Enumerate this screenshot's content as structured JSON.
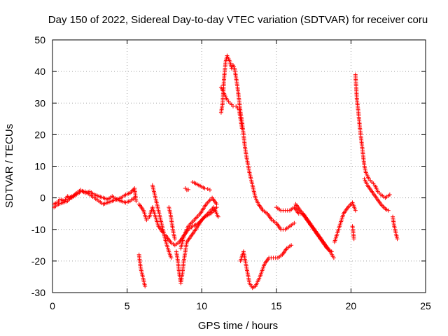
{
  "chart_data": {
    "type": "scatter",
    "title": "Day 150 of 2022, Sidereal Day-to-day VTEC variation (SDTVAR) for receiver coru",
    "xlabel": "GPS time / hours",
    "ylabel": "SDTVAR / TECUs",
    "xlim": [
      0,
      25
    ],
    "ylim": [
      -30,
      50
    ],
    "xticks": [
      "0",
      "5",
      "10",
      "15",
      "20",
      "25"
    ],
    "yticks": [
      "-30",
      "-20",
      "-10",
      "0",
      "10",
      "20",
      "30",
      "40",
      "50"
    ],
    "grid": true,
    "marker": "+",
    "color": "#ff0000",
    "series": [
      {
        "name": "SDTVAR",
        "segments": [
          [
            [
              0.1,
              -2
            ],
            [
              0.3,
              -1.5
            ],
            [
              0.5,
              -0.5
            ],
            [
              0.8,
              -1
            ],
            [
              1.0,
              0.5
            ],
            [
              1.3,
              0
            ],
            [
              1.6,
              1.5
            ],
            [
              1.9,
              2.5
            ],
            [
              2.2,
              1.5
            ],
            [
              2.5,
              2
            ],
            [
              2.8,
              1
            ],
            [
              3.1,
              0.5
            ],
            [
              3.4,
              0
            ],
            [
              3.7,
              -0.5
            ],
            [
              4.0,
              0.5
            ],
            [
              4.3,
              -0.5
            ],
            [
              4.6,
              0
            ],
            [
              4.9,
              1
            ],
            [
              5.2,
              1.5
            ],
            [
              5.5,
              3
            ],
            [
              5.6,
              -1
            ]
          ],
          [
            [
              0.1,
              -3
            ],
            [
              0.4,
              -2
            ],
            [
              0.7,
              -1.5
            ],
            [
              1.0,
              -1
            ],
            [
              1.3,
              0.5
            ],
            [
              1.6,
              1
            ],
            [
              1.9,
              2
            ],
            [
              2.2,
              2
            ],
            [
              2.5,
              1
            ],
            [
              2.8,
              0
            ],
            [
              3.1,
              -1
            ],
            [
              3.4,
              -2
            ],
            [
              3.7,
              -1.5
            ],
            [
              4.0,
              -1
            ],
            [
              4.3,
              -0.5
            ],
            [
              4.6,
              -1
            ],
            [
              4.9,
              -1.5
            ],
            [
              5.2,
              -1
            ],
            [
              5.5,
              0
            ]
          ],
          [
            [
              5.8,
              -18
            ],
            [
              5.9,
              -22
            ],
            [
              6.0,
              -24
            ],
            [
              6.1,
              -26
            ],
            [
              6.2,
              -28
            ]
          ],
          [
            [
              5.8,
              -2
            ],
            [
              6.1,
              -4
            ],
            [
              6.3,
              -7
            ],
            [
              6.5,
              -6
            ],
            [
              6.7,
              -3
            ],
            [
              6.9,
              -6
            ],
            [
              7.1,
              -9
            ],
            [
              7.4,
              -11
            ],
            [
              7.6,
              -12
            ],
            [
              7.9,
              -14
            ],
            [
              8.2,
              -15
            ],
            [
              8.5,
              -14
            ],
            [
              8.8,
              -12
            ],
            [
              9.1,
              -10
            ],
            [
              9.4,
              -9
            ],
            [
              9.8,
              -8
            ],
            [
              10.2,
              -6
            ],
            [
              10.6,
              -5
            ],
            [
              11.0,
              -3
            ]
          ],
          [
            [
              6.7,
              4
            ],
            [
              6.8,
              2
            ],
            [
              7.0,
              -2
            ],
            [
              7.2,
              -6
            ],
            [
              7.4,
              -10
            ],
            [
              7.6,
              -14
            ],
            [
              7.8,
              -17
            ],
            [
              7.95,
              -19
            ]
          ],
          [
            [
              7.8,
              -3
            ],
            [
              7.9,
              -5
            ],
            [
              8.0,
              -8
            ],
            [
              8.1,
              -11
            ],
            [
              8.2,
              -13
            ]
          ],
          [
            [
              8.3,
              -17
            ],
            [
              8.4,
              -20
            ],
            [
              8.5,
              -24
            ],
            [
              8.6,
              -27
            ],
            [
              8.7,
              -24
            ],
            [
              8.8,
              -20
            ],
            [
              9.0,
              -14
            ],
            [
              9.3,
              -12
            ],
            [
              9.6,
              -10
            ],
            [
              10.0,
              -7
            ],
            [
              10.4,
              -5
            ],
            [
              10.8,
              -3
            ],
            [
              11.1,
              -6
            ]
          ],
          [
            [
              8.6,
              -16
            ],
            [
              8.8,
              -12
            ],
            [
              9.1,
              -9
            ],
            [
              9.5,
              -7
            ],
            [
              9.9,
              -5
            ],
            [
              10.3,
              -2
            ],
            [
              10.7,
              0
            ],
            [
              11.0,
              -2
            ]
          ],
          [
            [
              8.9,
              3
            ],
            [
              9.0,
              2.5
            ],
            [
              9.1,
              2.6
            ]
          ],
          [
            [
              9.4,
              5
            ],
            [
              9.6,
              4.5
            ],
            [
              9.8,
              4
            ],
            [
              10.0,
              3.5
            ],
            [
              10.2,
              3
            ],
            [
              10.4,
              2.8
            ],
            [
              10.55,
              2.5
            ]
          ],
          [
            [
              11.3,
              27
            ],
            [
              11.4,
              30
            ],
            [
              11.5,
              38
            ],
            [
              11.6,
              43
            ],
            [
              11.7,
              45
            ],
            [
              11.8,
              44
            ],
            [
              11.9,
              43
            ],
            [
              12.0,
              41
            ],
            [
              12.1,
              42
            ],
            [
              12.2,
              41
            ],
            [
              12.3,
              38
            ],
            [
              12.4,
              35
            ],
            [
              12.5,
              31
            ],
            [
              12.6,
              27
            ],
            [
              12.7,
              24
            ],
            [
              12.8,
              20
            ],
            [
              12.9,
              16
            ],
            [
              13.0,
              13
            ],
            [
              13.2,
              8
            ],
            [
              13.4,
              4
            ],
            [
              13.6,
              0
            ],
            [
              13.8,
              -2
            ],
            [
              14.1,
              -4
            ],
            [
              14.4,
              -5
            ],
            [
              14.7,
              -7
            ],
            [
              15.0,
              -8
            ],
            [
              15.3,
              -10
            ],
            [
              15.6,
              -10
            ],
            [
              15.9,
              -9
            ],
            [
              16.2,
              -8
            ]
          ],
          [
            [
              11.3,
              35
            ],
            [
              11.5,
              33
            ],
            [
              11.7,
              31
            ],
            [
              11.9,
              30
            ],
            [
              12.1,
              29
            ],
            [
              12.3,
              29
            ],
            [
              12.5,
              28
            ],
            [
              12.7,
              22
            ]
          ],
          [
            [
              12.6,
              -20
            ],
            [
              12.8,
              -17
            ],
            [
              13.0,
              -22
            ],
            [
              13.2,
              -27
            ],
            [
              13.4,
              -28.5
            ],
            [
              13.6,
              -28
            ],
            [
              13.9,
              -25
            ],
            [
              14.2,
              -21
            ],
            [
              14.5,
              -19
            ],
            [
              14.8,
              -19
            ],
            [
              15.1,
              -19
            ],
            [
              15.4,
              -18
            ],
            [
              15.7,
              -16
            ],
            [
              16.0,
              -15
            ]
          ],
          [
            [
              15.0,
              -3
            ],
            [
              15.3,
              -4
            ],
            [
              15.6,
              -4
            ],
            [
              15.9,
              -4
            ],
            [
              16.2,
              -3
            ],
            [
              16.5,
              -5
            ],
            [
              16.8,
              -5
            ],
            [
              17.1,
              -7
            ],
            [
              17.4,
              -9
            ],
            [
              17.7,
              -11
            ],
            [
              18.0,
              -13
            ],
            [
              18.3,
              -15
            ],
            [
              18.6,
              -17
            ],
            [
              18.85,
              -19
            ]
          ],
          [
            [
              16.3,
              -2
            ],
            [
              16.6,
              -4
            ],
            [
              16.9,
              -6
            ],
            [
              17.2,
              -8
            ],
            [
              17.5,
              -10
            ],
            [
              17.8,
              -12
            ],
            [
              18.1,
              -14
            ],
            [
              18.4,
              -16
            ],
            [
              18.7,
              -17
            ]
          ],
          [
            [
              18.9,
              -14
            ],
            [
              19.1,
              -11
            ],
            [
              19.3,
              -8
            ],
            [
              19.5,
              -5
            ],
            [
              19.8,
              -3
            ],
            [
              20.1,
              -1.5
            ],
            [
              20.3,
              -4
            ]
          ],
          [
            [
              20.1,
              -9
            ],
            [
              20.2,
              -13
            ]
          ],
          [
            [
              20.3,
              39
            ],
            [
              20.35,
              35
            ],
            [
              20.4,
              31
            ],
            [
              20.5,
              27
            ],
            [
              20.6,
              22
            ],
            [
              20.7,
              18
            ],
            [
              20.8,
              14
            ],
            [
              20.9,
              10
            ],
            [
              21.0,
              8
            ],
            [
              21.2,
              6
            ],
            [
              21.4,
              5
            ],
            [
              21.6,
              4
            ],
            [
              21.8,
              2
            ],
            [
              22.0,
              1
            ],
            [
              22.3,
              0
            ],
            [
              22.6,
              1
            ]
          ],
          [
            [
              20.9,
              6
            ],
            [
              21.1,
              4
            ],
            [
              21.4,
              2
            ],
            [
              21.7,
              0
            ],
            [
              22.0,
              -2
            ],
            [
              22.3,
              -3.5
            ],
            [
              22.5,
              -4
            ]
          ],
          [
            [
              22.8,
              -6
            ],
            [
              22.9,
              -9
            ],
            [
              23.0,
              -11
            ],
            [
              23.1,
              -13
            ]
          ]
        ]
      }
    ]
  }
}
